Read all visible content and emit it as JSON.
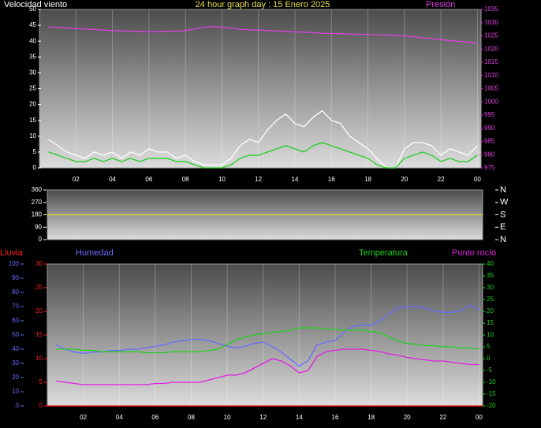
{
  "chart_data": [
    {
      "type": "line",
      "title": "24 hour graph day : 15 Enero 2025",
      "x": [
        0.5,
        1,
        1.5,
        2,
        2.5,
        3,
        3.5,
        4,
        4.5,
        5,
        5.5,
        6,
        6.5,
        7,
        7.5,
        8,
        8.5,
        9,
        9.5,
        10,
        10.5,
        11,
        11.5,
        12,
        12.5,
        13,
        13.5,
        14,
        14.5,
        15,
        15.5,
        16,
        16.5,
        17,
        17.5,
        18,
        18.5,
        19,
        19.5,
        20,
        20.5,
        21,
        21.5,
        22,
        22.5,
        23,
        23.5,
        24
      ],
      "xlim": [
        0,
        24.2
      ],
      "xticks": [
        {
          "value": 2,
          "label": "02"
        },
        {
          "value": 4,
          "label": "04"
        },
        {
          "value": 6,
          "label": "06"
        },
        {
          "value": 8,
          "label": "08"
        },
        10,
        12,
        14,
        16,
        18,
        20,
        22,
        {
          "value": 24,
          "label": "00"
        }
      ],
      "ylim": [
        0,
        50
      ],
      "yticks": [
        0,
        5,
        10,
        15,
        20,
        25,
        30,
        35,
        40,
        45,
        50
      ],
      "y2lim": [
        975,
        1035
      ],
      "y2ticks": [
        975,
        980,
        985,
        990,
        995,
        1000,
        1005,
        1010,
        1015,
        1020,
        1025,
        1030,
        1035
      ],
      "grid": true,
      "series": [
        {
          "name": "Velocidad viento",
          "color": "#ffffff",
          "values": [
            9,
            7,
            5,
            4,
            3,
            5,
            4,
            5,
            3,
            5,
            4,
            6,
            5,
            5,
            3,
            4,
            2,
            1,
            1,
            1,
            3,
            7,
            9,
            8,
            12,
            15,
            17,
            14,
            13,
            16,
            18,
            15,
            14,
            10,
            8,
            6,
            3,
            0,
            0,
            6,
            8,
            8,
            7,
            4,
            6,
            5,
            4,
            7
          ]
        },
        {
          "color": "#22cc22",
          "values": [
            5,
            4,
            3,
            2,
            2,
            3,
            2,
            3,
            2,
            3,
            2,
            3,
            3,
            3,
            2,
            2,
            1,
            0,
            0,
            0,
            1,
            3,
            4,
            4,
            5,
            6,
            7,
            6,
            5,
            7,
            8,
            7,
            6,
            5,
            4,
            3,
            1,
            0,
            0,
            3,
            4,
            5,
            4,
            2,
            3,
            2,
            2,
            4
          ]
        },
        {
          "name": "Presión",
          "color": "#e040e0",
          "axis": "y2",
          "values": [
            1028.4,
            1028.2,
            1028,
            1027.8,
            1027.6,
            1027.4,
            1027.2,
            1027,
            1026.9,
            1026.8,
            1026.7,
            1026.6,
            1026.6,
            1026.7,
            1026.8,
            1027,
            1027.6,
            1028.2,
            1028.5,
            1028.3,
            1027.9,
            1027.5,
            1027.3,
            1027.2,
            1027,
            1026.9,
            1026.7,
            1026.5,
            1026.4,
            1026.2,
            1026,
            1025.9,
            1025.8,
            1025.7,
            1025.6,
            1025.5,
            1025.4,
            1025.3,
            1025.2,
            1025,
            1024.7,
            1024.3,
            1024,
            1023.6,
            1023.2,
            1022.9,
            1022.6,
            1022.3
          ]
        }
      ]
    },
    {
      "type": "line",
      "x": [
        0,
        24.2
      ],
      "xlim": [
        0,
        24.2
      ],
      "ylim": [
        0,
        360
      ],
      "yticks": [
        0,
        90,
        180,
        270,
        360
      ],
      "y2lim": [
        0,
        360
      ],
      "y2ticks": [
        {
          "value": 360,
          "label": "N"
        },
        {
          "value": 270,
          "label": "W"
        },
        {
          "value": 180,
          "label": "S"
        },
        {
          "value": 90,
          "label": "E"
        },
        {
          "value": 0,
          "label": "N"
        }
      ],
      "series": [
        {
          "color": "#e8e030",
          "values": [
            180,
            180
          ]
        }
      ]
    },
    {
      "type": "line",
      "x": [
        0.5,
        1,
        1.5,
        2,
        2.5,
        3,
        3.5,
        4,
        4.5,
        5,
        5.5,
        6,
        6.5,
        7,
        7.5,
        8,
        8.5,
        9,
        9.5,
        10,
        10.5,
        11,
        11.5,
        12,
        12.5,
        13,
        13.5,
        14,
        14.5,
        15,
        15.5,
        16,
        16.5,
        17,
        17.5,
        18,
        18.5,
        19,
        19.5,
        20,
        20.5,
        21,
        21.5,
        22,
        22.5,
        23,
        23.5,
        24
      ],
      "xlim": [
        0,
        24.2
      ],
      "xticks": [
        {
          "value": 2,
          "label": "02"
        },
        {
          "value": 4,
          "label": "04"
        },
        {
          "value": 6,
          "label": "06"
        },
        {
          "value": 8,
          "label": "08"
        },
        10,
        12,
        14,
        16,
        18,
        20,
        22,
        {
          "value": 24,
          "label": "00"
        }
      ],
      "ylim": [
        0,
        100
      ],
      "yticks": [
        0,
        10,
        20,
        30,
        40,
        50,
        60,
        70,
        80,
        90,
        100
      ],
      "y3lim": [
        0,
        30
      ],
      "y3ticks": [
        0,
        5,
        10,
        15,
        20,
        25,
        30
      ],
      "y2lim": [
        -20,
        40
      ],
      "y2ticks": [
        -20,
        -15,
        -10,
        -5,
        0,
        5,
        10,
        15,
        20,
        25,
        30,
        35,
        40
      ],
      "grid": true,
      "series": [
        {
          "name": "Lluvia",
          "color": "#ff0000",
          "axis": "y3",
          "x": [
            0,
            24.2
          ],
          "values": [
            0,
            0
          ]
        },
        {
          "name": "Humedad",
          "color": "#6a6aff",
          "values": [
            43,
            40,
            38,
            37,
            38,
            38,
            39,
            39,
            40,
            40,
            41,
            42,
            43,
            45,
            46,
            47,
            47,
            46,
            44,
            42,
            41,
            42,
            44,
            45,
            42,
            38,
            33,
            28,
            32,
            43,
            45,
            46,
            52,
            56,
            57,
            57,
            60,
            65,
            69,
            70,
            70,
            69,
            67,
            66,
            66,
            67,
            71,
            68
          ]
        },
        {
          "name": "Temperatura",
          "color": "#20d020",
          "axis": "y2",
          "values": [
            4,
            4,
            4,
            3.5,
            3.5,
            3,
            3,
            3,
            3,
            3,
            2.5,
            2.5,
            2.5,
            3,
            3,
            3,
            3,
            3.5,
            4,
            6,
            8,
            9,
            10,
            10.5,
            11,
            11.5,
            12,
            13,
            13,
            13,
            12.5,
            12.5,
            12,
            12,
            12,
            11.5,
            11,
            9,
            7.5,
            6.5,
            6,
            5.5,
            5.5,
            5,
            5,
            4.5,
            4.5,
            4
          ]
        },
        {
          "name": "Punto rocío",
          "color": "#e020e0",
          "axis": "y2",
          "values": [
            -9.5,
            -10,
            -10.5,
            -11,
            -11,
            -11,
            -11,
            -11,
            -11,
            -11,
            -11,
            -10.5,
            -10.5,
            -10,
            -10,
            -10,
            -10,
            -9,
            -8,
            -7,
            -7,
            -6,
            -4,
            -2,
            0,
            -1,
            -3,
            -6,
            -5,
            1,
            3,
            3.5,
            4,
            4,
            4,
            3.5,
            3,
            2,
            1.5,
            0.5,
            0,
            -0.5,
            -1,
            -1,
            -1.5,
            -2,
            -2.5,
            -2.5
          ]
        }
      ]
    }
  ]
}
